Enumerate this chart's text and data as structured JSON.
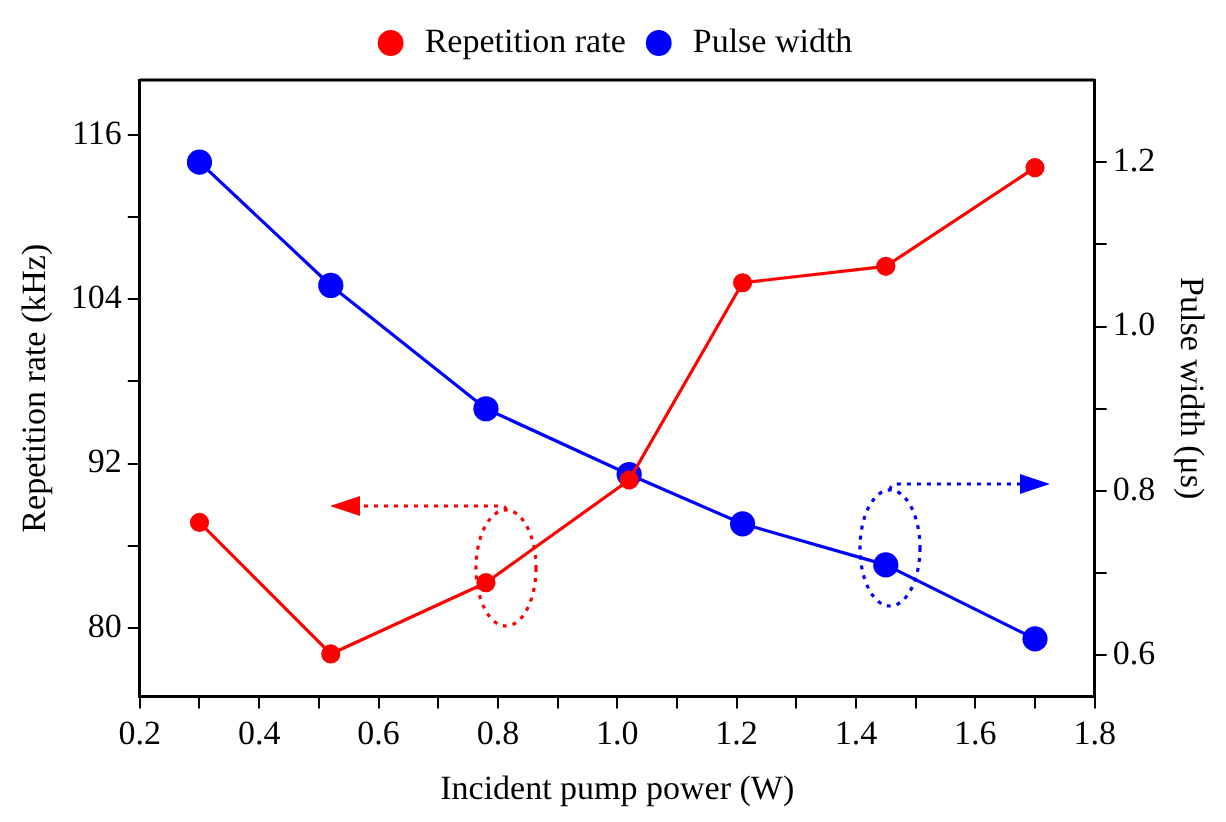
{
  "chart_data": {
    "type": "line",
    "xlabel": "Incident pump power (W)",
    "ylabel": "Repetition rate (kHz)",
    "y2label": "Pulse width (μs)",
    "x": [
      0.3,
      0.52,
      0.78,
      1.02,
      1.21,
      1.45,
      1.7
    ],
    "series": [
      {
        "name": "Repetition rate",
        "color": "#ff0000",
        "values": [
          87.7,
          78.1,
          83.3,
          90.8,
          105.2,
          106.4,
          113.6
        ]
      },
      {
        "name": "Pulse width",
        "color": "#0000ff",
        "axis": "y2",
        "values": [
          1.2,
          1.05,
          0.9,
          0.82,
          0.76,
          0.71,
          0.62
        ]
      }
    ],
    "xlim": [
      0.2,
      1.8
    ],
    "xticks": [
      0.2,
      {
        "value": 0.3,
        "label": null
      },
      0.4,
      {
        "value": 0.5,
        "label": null
      },
      0.6,
      {
        "value": 0.7,
        "label": null
      },
      0.8,
      {
        "value": 0.9,
        "label": null
      },
      {
        "value": 1,
        "label": "1.0"
      },
      {
        "value": 1.1,
        "label": null
      },
      1.2,
      {
        "value": 1.3,
        "label": null
      },
      1.4,
      {
        "value": 1.5,
        "label": null
      },
      1.6,
      {
        "value": 1.7,
        "label": null
      },
      1.8
    ],
    "ylim": [
      75,
      120
    ],
    "yticks": [
      80,
      {
        "value": 86,
        "label": null
      },
      92,
      {
        "value": 98,
        "label": null
      },
      104,
      {
        "value": 110,
        "label": null
      },
      116
    ],
    "y2lim": [
      0.55,
      1.3
    ],
    "y2ticks": [
      0.6,
      {
        "value": 0.7,
        "label": null
      },
      0.8,
      {
        "value": 0.9,
        "label": null
      },
      {
        "value": 1,
        "label": "1.0"
      },
      {
        "value": 1.1,
        "label": null
      },
      1.2
    ],
    "grid": false,
    "legend": "top",
    "marker": "circle",
    "line_style": "solid"
  }
}
